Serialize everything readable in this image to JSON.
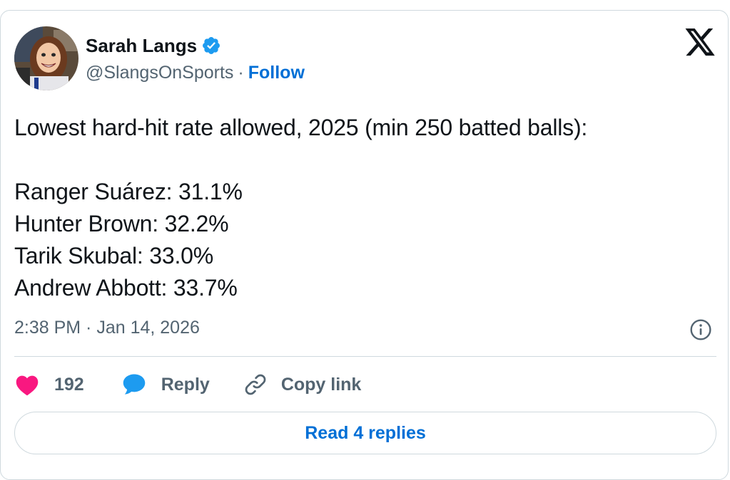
{
  "author": {
    "display_name": "Sarah Langs",
    "handle": "@SlangsOnSports",
    "separator": "·",
    "follow_label": "Follow",
    "verified_icon": "verified-badge-icon",
    "avatar": "cartoon-avatar"
  },
  "tweet": {
    "text": "Lowest hard-hit rate allowed, 2025 (min 250 batted balls):\n\nRanger Suárez: 31.1%\nHunter Brown: 32.2%\nTarik Skubal: 33.0%\nAndrew Abbott: 33.7%",
    "timestamp": "2:38 PM · Jan 14, 2026"
  },
  "actions": {
    "like_count": "192",
    "reply_label": "Reply",
    "copy_label": "Copy link"
  },
  "read_replies_label": "Read 4 replies",
  "colors": {
    "link": "#006fd6",
    "verified": "#1d9bf0",
    "heart": "#f91880",
    "reply_bubble": "#1d9bf0",
    "secondary_text": "#536471",
    "border": "#cfd9de"
  },
  "icons": [
    "x-logo-icon",
    "info-icon",
    "heart-icon",
    "reply-bubble-icon",
    "link-icon"
  ]
}
